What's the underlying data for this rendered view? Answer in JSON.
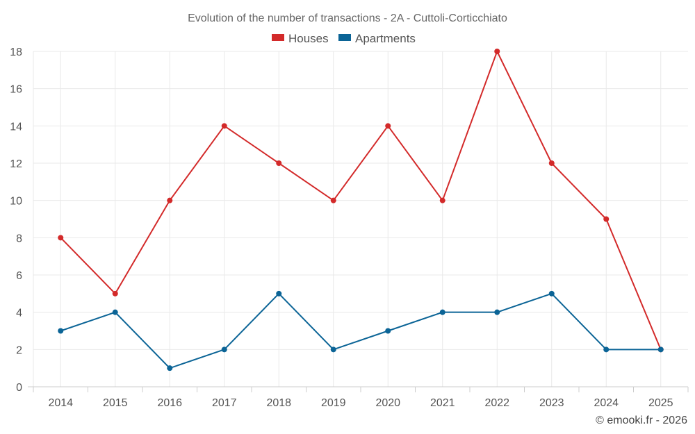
{
  "chart_data": {
    "type": "line",
    "title": "Evolution of the number of transactions - 2A - Cuttoli-Corticchiato",
    "xlabel": "",
    "ylabel": "",
    "categories": [
      "2014",
      "2015",
      "2016",
      "2017",
      "2018",
      "2019",
      "2020",
      "2021",
      "2022",
      "2023",
      "2024",
      "2025"
    ],
    "ylim": [
      0,
      18
    ],
    "yticks": [
      0,
      2,
      4,
      6,
      8,
      10,
      12,
      14,
      16,
      18
    ],
    "grid": true,
    "legend_position": "top-center",
    "series": [
      {
        "name": "Houses",
        "color": "#d32a2a",
        "values": [
          8,
          5,
          10,
          14,
          12,
          10,
          14,
          10,
          18,
          12,
          9,
          2
        ]
      },
      {
        "name": "Apartments",
        "color": "#0b6496",
        "values": [
          3,
          4,
          1,
          2,
          5,
          2,
          3,
          4,
          4,
          5,
          2,
          2
        ]
      }
    ]
  },
  "credit": "© emooki.fr - 2026"
}
